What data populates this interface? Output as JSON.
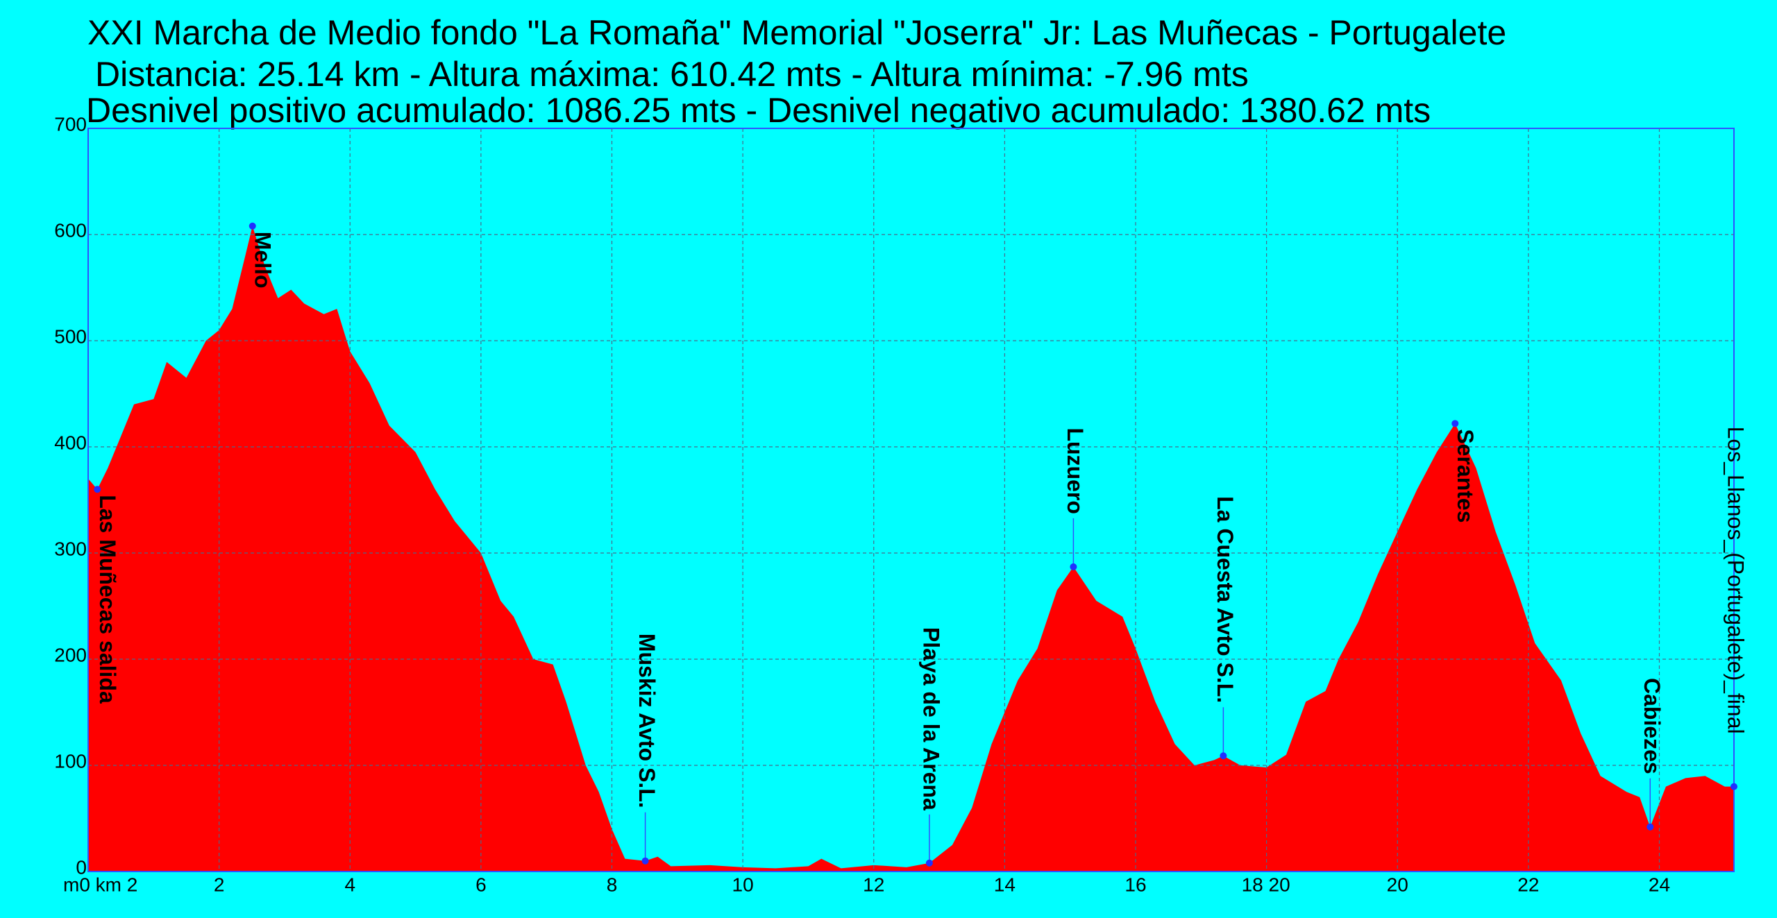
{
  "chart_data": {
    "type": "area",
    "title_lines": [
      "XXI Marcha de Medio fondo \"La Romaña\" Memorial \"Joserra\" Jr: Las Muñecas - Portugalete",
      "Distancia: 25.14 km - Altura máxima: 610.42 mts - Altura mínima: -7.96 mts",
      "Desnivel positivo acumulado: 1086.25 mts - Desnivel negativo acumulado: 1380.62 mts"
    ],
    "x": [
      0,
      0.14,
      0.3,
      0.5,
      0.7,
      1.0,
      1.2,
      1.5,
      1.8,
      2.0,
      2.2,
      2.4,
      2.51,
      2.7,
      2.9,
      3.1,
      3.3,
      3.6,
      3.8,
      4.0,
      4.3,
      4.6,
      5.0,
      5.3,
      5.6,
      6.0,
      6.3,
      6.5,
      6.8,
      7.1,
      7.3,
      7.6,
      7.8,
      8.0,
      8.2,
      8.51,
      8.7,
      8.9,
      9.5,
      10.0,
      10.5,
      11.0,
      11.2,
      11.5,
      12.0,
      12.5,
      12.85,
      13.2,
      13.5,
      13.8,
      14.2,
      14.5,
      14.8,
      15.05,
      15.4,
      15.8,
      16.0,
      16.3,
      16.6,
      16.9,
      17.2,
      17.34,
      17.6,
      18.0,
      18.3,
      18.6,
      18.9,
      19.1,
      19.4,
      19.7,
      20.0,
      20.3,
      20.6,
      20.88,
      21.2,
      21.5,
      21.8,
      22.1,
      22.5,
      22.8,
      23.1,
      23.5,
      23.7,
      23.86,
      24.1,
      24.4,
      24.7,
      25.0,
      25.14
    ],
    "series": [
      {
        "color": "#ff0000",
        "values": [
          370,
          360,
          380,
          410,
          440,
          445,
          480,
          465,
          500,
          510,
          530,
          580,
          608,
          570,
          540,
          548,
          535,
          525,
          530,
          490,
          460,
          420,
          395,
          360,
          330,
          300,
          255,
          240,
          200,
          195,
          160,
          100,
          75,
          40,
          12,
          10,
          14,
          5,
          6,
          4,
          3,
          5,
          12,
          3,
          6,
          4,
          8,
          25,
          60,
          120,
          180,
          210,
          265,
          287,
          255,
          240,
          210,
          160,
          120,
          100,
          105,
          109,
          100,
          98,
          110,
          160,
          170,
          200,
          235,
          280,
          320,
          360,
          395,
          422,
          380,
          320,
          270,
          215,
          180,
          130,
          90,
          75,
          70,
          42,
          80,
          88,
          90,
          80,
          80
        ]
      }
    ],
    "annotations": [
      {
        "label": "Las Muñecas salida",
        "x": 0.14,
        "y": 360,
        "position": "below"
      },
      {
        "label": "Mello",
        "x": 2.51,
        "y": 608,
        "position": "below"
      },
      {
        "label": "Muskiz Avto S.L.",
        "x": 8.51,
        "y": 10,
        "position": "above"
      },
      {
        "label": "Playa de la Arena",
        "x": 12.85,
        "y": 8,
        "position": "above"
      },
      {
        "label": "Luzuero",
        "x": 15.05,
        "y": 287,
        "position": "above"
      },
      {
        "label": "La Cuesta Avto S.L.",
        "x": 17.34,
        "y": 109,
        "position": "above"
      },
      {
        "label": "Serantes",
        "x": 20.88,
        "y": 422,
        "position": "below"
      },
      {
        "label": "Cabiezes",
        "x": 23.86,
        "y": 42,
        "position": "above"
      },
      {
        "label": "Los_Llanos_(Portugalete)_final",
        "x": 25.14,
        "y": 80,
        "position": "above"
      }
    ],
    "xlim": [
      0,
      25.14
    ],
    "ylim": [
      0,
      700
    ],
    "xticks": [
      {
        "value": 0,
        "label": "m0 km 2"
      },
      2,
      4,
      6,
      8,
      10,
      12,
      14,
      16,
      {
        "value": 18,
        "label": "18 20"
      },
      20,
      22,
      24
    ],
    "yticks": [
      0,
      100,
      200,
      300,
      400,
      500,
      600,
      700
    ],
    "grid": true
  }
}
